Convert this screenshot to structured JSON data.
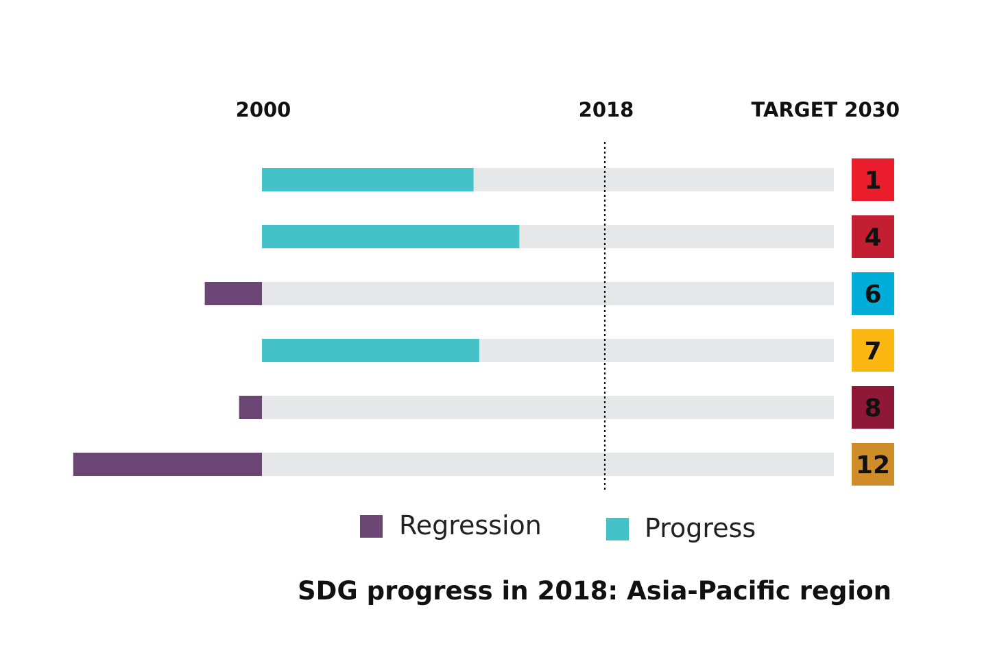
{
  "chart_data": {
    "type": "bar",
    "orientation": "horizontal",
    "title": "SDG progress in 2018: Asia-Pacific region",
    "axis_labels": {
      "start": "2000",
      "current": "2018",
      "end": "TARGET 2030"
    },
    "xlim": [
      -0.33,
      1.0
    ],
    "marker_at": 0.6,
    "categories": [
      "1",
      "4",
      "6",
      "7",
      "8",
      "12"
    ],
    "badge_colors": [
      "#EA1D2D",
      "#C31F33",
      "#00ADD8",
      "#FDB713",
      "#8F1838",
      "#CF8D2A"
    ],
    "values": [
      0.37,
      0.45,
      -0.1,
      0.38,
      -0.04,
      -0.33
    ],
    "series": [
      {
        "name": "Regression",
        "color": "#6B4573"
      },
      {
        "name": "Progress",
        "color": "#45C2C7"
      }
    ],
    "track_color": "#E6E7E9",
    "legend": "bottom-center"
  }
}
